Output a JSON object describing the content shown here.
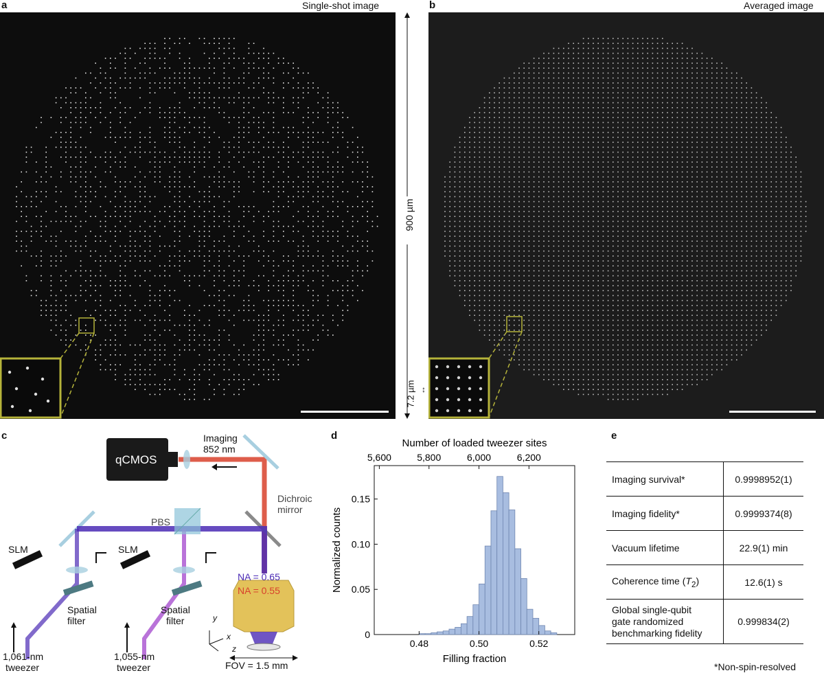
{
  "panels": {
    "a": {
      "letter": "a",
      "title": "Single-shot image",
      "scale_label": "900 µm"
    },
    "b": {
      "letter": "b",
      "title": "Averaged image",
      "inset_scale_label": "7.2 µm"
    },
    "c": {
      "letter": "c",
      "camera": "qCMOS",
      "imaging_label_1": "Imaging",
      "imaging_label_2": "852 nm",
      "dichroic_1": "Dichroic",
      "dichroic_2": "mirror",
      "pbs": "PBS",
      "slm_left": "SLM",
      "slm_right": "SLM",
      "spatial_1": "Spatial",
      "filter_1": "filter",
      "spatial_2": "Spatial",
      "filter_2": "filter",
      "na_blue": "NA = 0.65",
      "na_red": "NA = 0.55",
      "tweezer_left_1": "1,061-nm",
      "tweezer_left_2": "tweezer",
      "tweezer_right_1": "1,055-nm",
      "tweezer_right_2": "tweezer",
      "fov": "FOV = 1.5 mm",
      "axis_x": "x",
      "axis_y": "y",
      "axis_z": "z",
      "colors": {
        "blue_beam": "#4b2bb5",
        "purple_beam": "#9b38c9",
        "red_beam": "#d8412c",
        "objective": "#e3c25a"
      }
    },
    "d": {
      "letter": "d"
    },
    "e": {
      "letter": "e",
      "rows": [
        {
          "label": "Imaging survival*",
          "value": "0.9998952(1)"
        },
        {
          "label": "Imaging fidelity*",
          "value": "0.9999374(8)"
        },
        {
          "label": "Vacuum lifetime",
          "value": "22.9(1) min"
        },
        {
          "label_main": "Coherence time (",
          "label_italic": "T",
          "label_sub": "2",
          "label_end": ")",
          "value": "12.6(1) s"
        },
        {
          "label_lines": [
            "Global single-qubit",
            "gate randomized",
            "benchmarking fidelity"
          ],
          "value": "0.999834(2)"
        }
      ],
      "footnote": "*Non-spin-resolved"
    }
  },
  "chart_data": {
    "type": "bar",
    "xlabel": "Filling fraction",
    "ylabel": "Normalized counts",
    "top_axis_label": "Number of loaded tweezer sites",
    "xlim": [
      0.465,
      0.532
    ],
    "ylim": [
      0,
      0.187
    ],
    "x_ticks": [
      "0.48",
      "0.50",
      "0.52"
    ],
    "x_tick_values": [
      0.48,
      0.5,
      0.52
    ],
    "y_ticks": [
      "0",
      "0.05",
      "0.10",
      "0.15"
    ],
    "y_tick_values": [
      0,
      0.05,
      0.1,
      0.15
    ],
    "top_ticks": [
      "5,600",
      "5,800",
      "6,000",
      "6,200"
    ],
    "top_tick_fractions": [
      0.4667,
      0.4833,
      0.5,
      0.5167
    ],
    "bins": [
      0.48,
      0.482,
      0.484,
      0.486,
      0.488,
      0.49,
      0.492,
      0.494,
      0.496,
      0.498,
      0.5,
      0.502,
      0.504,
      0.506,
      0.508,
      0.51,
      0.512,
      0.514,
      0.516,
      0.518,
      0.52,
      0.522,
      0.524
    ],
    "bin_width": 0.002,
    "values": [
      0.001,
      0.001,
      0.002,
      0.003,
      0.004,
      0.006,
      0.008,
      0.012,
      0.02,
      0.033,
      0.056,
      0.098,
      0.137,
      0.175,
      0.157,
      0.138,
      0.095,
      0.062,
      0.028,
      0.018,
      0.01,
      0.004,
      0.002
    ],
    "bar_color": "#a8bde0"
  }
}
